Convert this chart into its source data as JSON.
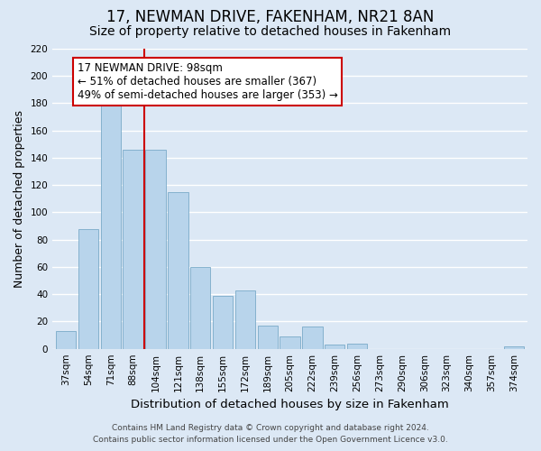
{
  "title": "17, NEWMAN DRIVE, FAKENHAM, NR21 8AN",
  "subtitle": "Size of property relative to detached houses in Fakenham",
  "xlabel": "Distribution of detached houses by size in Fakenham",
  "ylabel": "Number of detached properties",
  "categories": [
    "37sqm",
    "54sqm",
    "71sqm",
    "88sqm",
    "104sqm",
    "121sqm",
    "138sqm",
    "155sqm",
    "172sqm",
    "189sqm",
    "205sqm",
    "222sqm",
    "239sqm",
    "256sqm",
    "273sqm",
    "290sqm",
    "306sqm",
    "323sqm",
    "340sqm",
    "357sqm",
    "374sqm"
  ],
  "values": [
    13,
    88,
    179,
    146,
    146,
    115,
    60,
    39,
    43,
    17,
    9,
    16,
    3,
    4,
    0,
    0,
    0,
    0,
    0,
    0,
    2
  ],
  "bar_color": "#b8d4eb",
  "bar_edge_color": "#7aaac8",
  "vline_color": "#cc0000",
  "annotation_text": "17 NEWMAN DRIVE: 98sqm\n← 51% of detached houses are smaller (367)\n49% of semi-detached houses are larger (353) →",
  "annotation_box_color": "white",
  "annotation_box_edgecolor": "#cc0000",
  "ylim": [
    0,
    220
  ],
  "yticks": [
    0,
    20,
    40,
    60,
    80,
    100,
    120,
    140,
    160,
    180,
    200,
    220
  ],
  "footer_line1": "Contains HM Land Registry data © Crown copyright and database right 2024.",
  "footer_line2": "Contains public sector information licensed under the Open Government Licence v3.0.",
  "bg_color": "#dce8f5",
  "grid_color": "white",
  "title_fontsize": 12,
  "subtitle_fontsize": 10,
  "tick_fontsize": 7.5,
  "ylabel_fontsize": 9,
  "xlabel_fontsize": 9.5,
  "annotation_fontsize": 8.5,
  "footer_fontsize": 6.5
}
